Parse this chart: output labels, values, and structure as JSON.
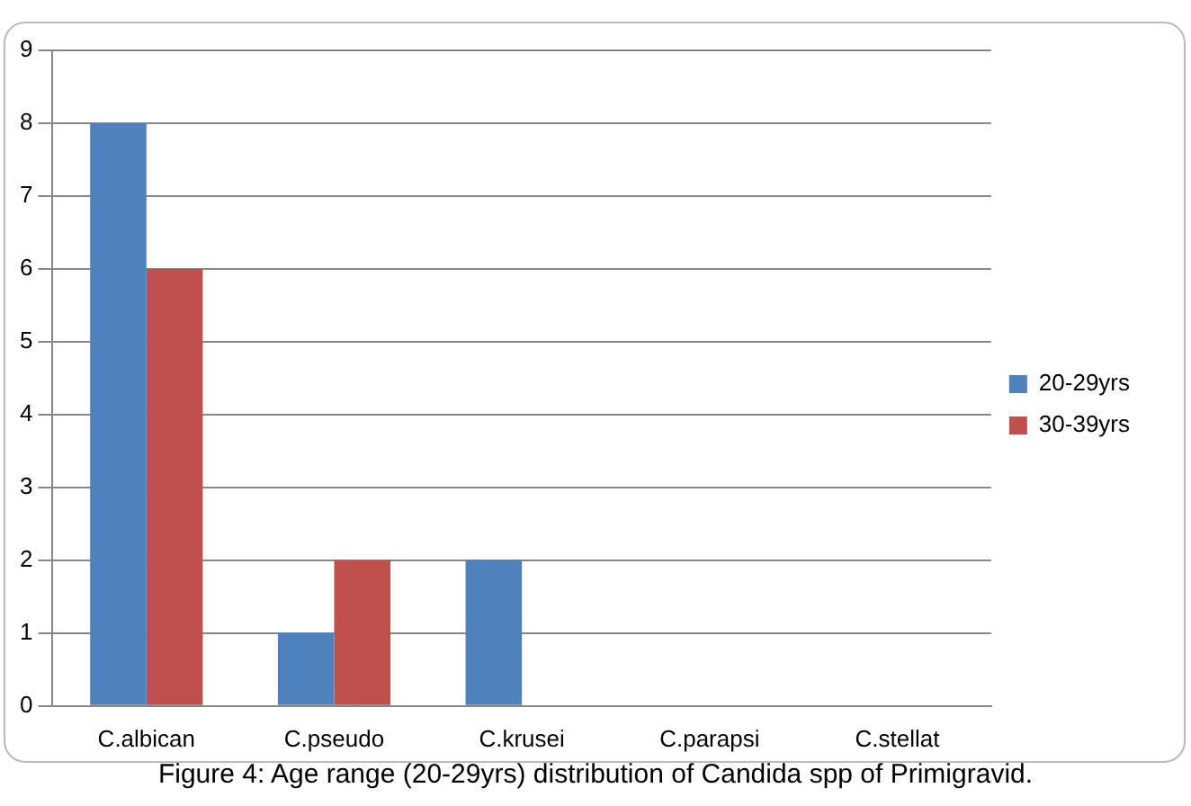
{
  "chart_data": {
    "type": "bar",
    "title": "Figure 4: Age range (20-29yrs) distribution of Candida spp of Primigravid.",
    "categories": [
      "C.albican",
      "C.pseudo",
      "C.krusei",
      "C.parapsi",
      "C.stellat"
    ],
    "series": [
      {
        "name": "20-29yrs",
        "color": "#4f81bd",
        "values": [
          8,
          1,
          2,
          0,
          0
        ]
      },
      {
        "name": "30-39yrs",
        "color": "#c0504d",
        "values": [
          6,
          2,
          0,
          0,
          0
        ]
      }
    ],
    "ylim": [
      0,
      9
    ],
    "yticks": [
      0,
      1,
      2,
      3,
      4,
      5,
      6,
      7,
      8,
      9
    ],
    "grid": "y",
    "legend": "right"
  }
}
